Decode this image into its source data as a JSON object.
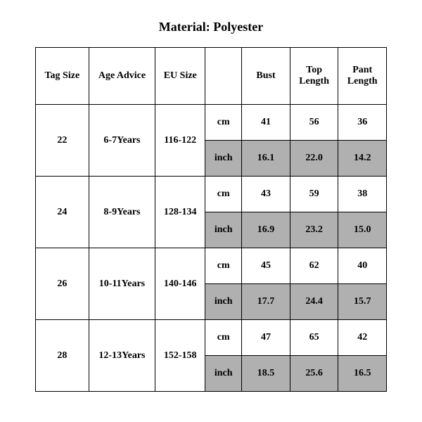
{
  "title": "Material: Polyester",
  "columns": [
    "Tag Size",
    "Age Advice",
    "EU Size",
    "",
    "Bust",
    "Top Length",
    "Pant Length"
  ],
  "unit_cm": "cm",
  "unit_inch": "inch",
  "rows": [
    {
      "tag": "22",
      "age": "6-7Years",
      "eu": "116-122",
      "cm": [
        "41",
        "56",
        "36"
      ],
      "inch": [
        "16.1",
        "22.0",
        "14.2"
      ]
    },
    {
      "tag": "24",
      "age": "8-9Years",
      "eu": "128-134",
      "cm": [
        "43",
        "59",
        "38"
      ],
      "inch": [
        "16.9",
        "23.2",
        "15.0"
      ]
    },
    {
      "tag": "26",
      "age": "10-11Years",
      "eu": "140-146",
      "cm": [
        "45",
        "62",
        "40"
      ],
      "inch": [
        "17.7",
        "24.4",
        "15.7"
      ]
    },
    {
      "tag": "28",
      "age": "12-13Years",
      "eu": "152-158",
      "cm": [
        "47",
        "65",
        "42"
      ],
      "inch": [
        "18.5",
        "25.6",
        "16.5"
      ]
    }
  ],
  "style": {
    "background": "#ffffff",
    "border_color": "#000000",
    "shade_color": "#b0b0b0",
    "font_family": "Times New Roman",
    "title_fontsize": 18,
    "cell_fontsize": 14,
    "header_row_height": 80,
    "body_row_height": 50
  }
}
